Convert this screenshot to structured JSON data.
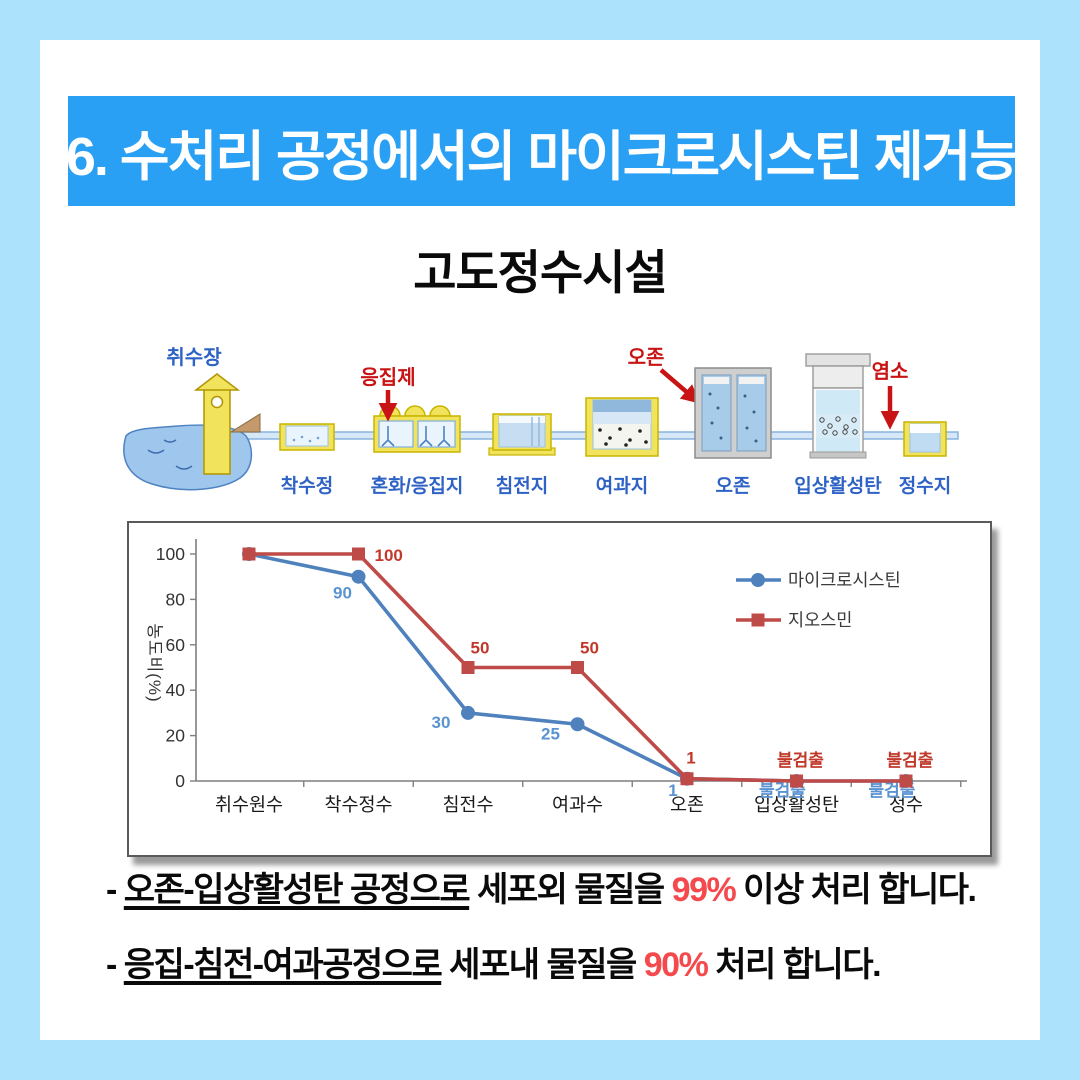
{
  "page": {
    "background": "#ACE2FC",
    "card_background": "#FFFFFF"
  },
  "header": {
    "title": "6. 수처리 공정에서의 마이크로시스틴 제거능",
    "background": "#2AA0F4",
    "text_color": "#FFFFFF"
  },
  "subtitle": "고도정수시설",
  "diagram": {
    "labels": {
      "intake": "취수장",
      "receiving_well": "착수정",
      "coagulant": "응집제",
      "mixing_basin": "혼화/응집지",
      "sedimentation": "침전지",
      "filtration": "여과지",
      "ozone_injection": "오존",
      "ozone_tank": "오존",
      "gac": "입상활성탄",
      "chlorine": "염소",
      "clear_well": "정수지"
    },
    "colors": {
      "blue_label": "#2F62C5",
      "red_label": "#C81414"
    }
  },
  "chart_data": {
    "type": "line",
    "categories": [
      "취수원수",
      "착수정수",
      "침전수",
      "여과수",
      "오존",
      "입상활성탄",
      "정수"
    ],
    "series": [
      {
        "name": "마이크로시스틴",
        "color": "#4F81BD",
        "marker": "circle",
        "label_side": "below",
        "label_color": "#5B93D1",
        "values": [
          100,
          90,
          30,
          25,
          1,
          0,
          0
        ],
        "labels": [
          null,
          "90",
          "30",
          "25",
          "1",
          "불검출",
          "불검출"
        ]
      },
      {
        "name": "지오스민",
        "color": "#BE4B48",
        "marker": "square",
        "label_side": "above",
        "label_color": "#C1392B",
        "values": [
          100,
          100,
          50,
          50,
          1,
          0,
          0
        ],
        "labels": [
          null,
          "100",
          "50",
          "50",
          "1",
          "불검출",
          "불검출"
        ]
      }
    ],
    "title": "",
    "xlabel": "",
    "ylabel": "농도비(%)",
    "yticks": [
      0,
      20,
      40,
      60,
      80,
      100
    ],
    "ylim": [
      0,
      110
    ],
    "grid": false,
    "legend_position": "upper right"
  },
  "bullets": [
    {
      "prefix": "- ",
      "underlined": "오존-입상활성탄 공정으로",
      "middle": " 세포외 물질을 ",
      "highlight": "99%",
      "suffix": " 이상 처리 합니다."
    },
    {
      "prefix": "- ",
      "underlined": "응집-침전-여과공정으로",
      "middle": " 세포내 물질을 ",
      "highlight": "90%",
      "suffix": " 처리 합니다."
    }
  ],
  "accent_red": "#F4494D"
}
